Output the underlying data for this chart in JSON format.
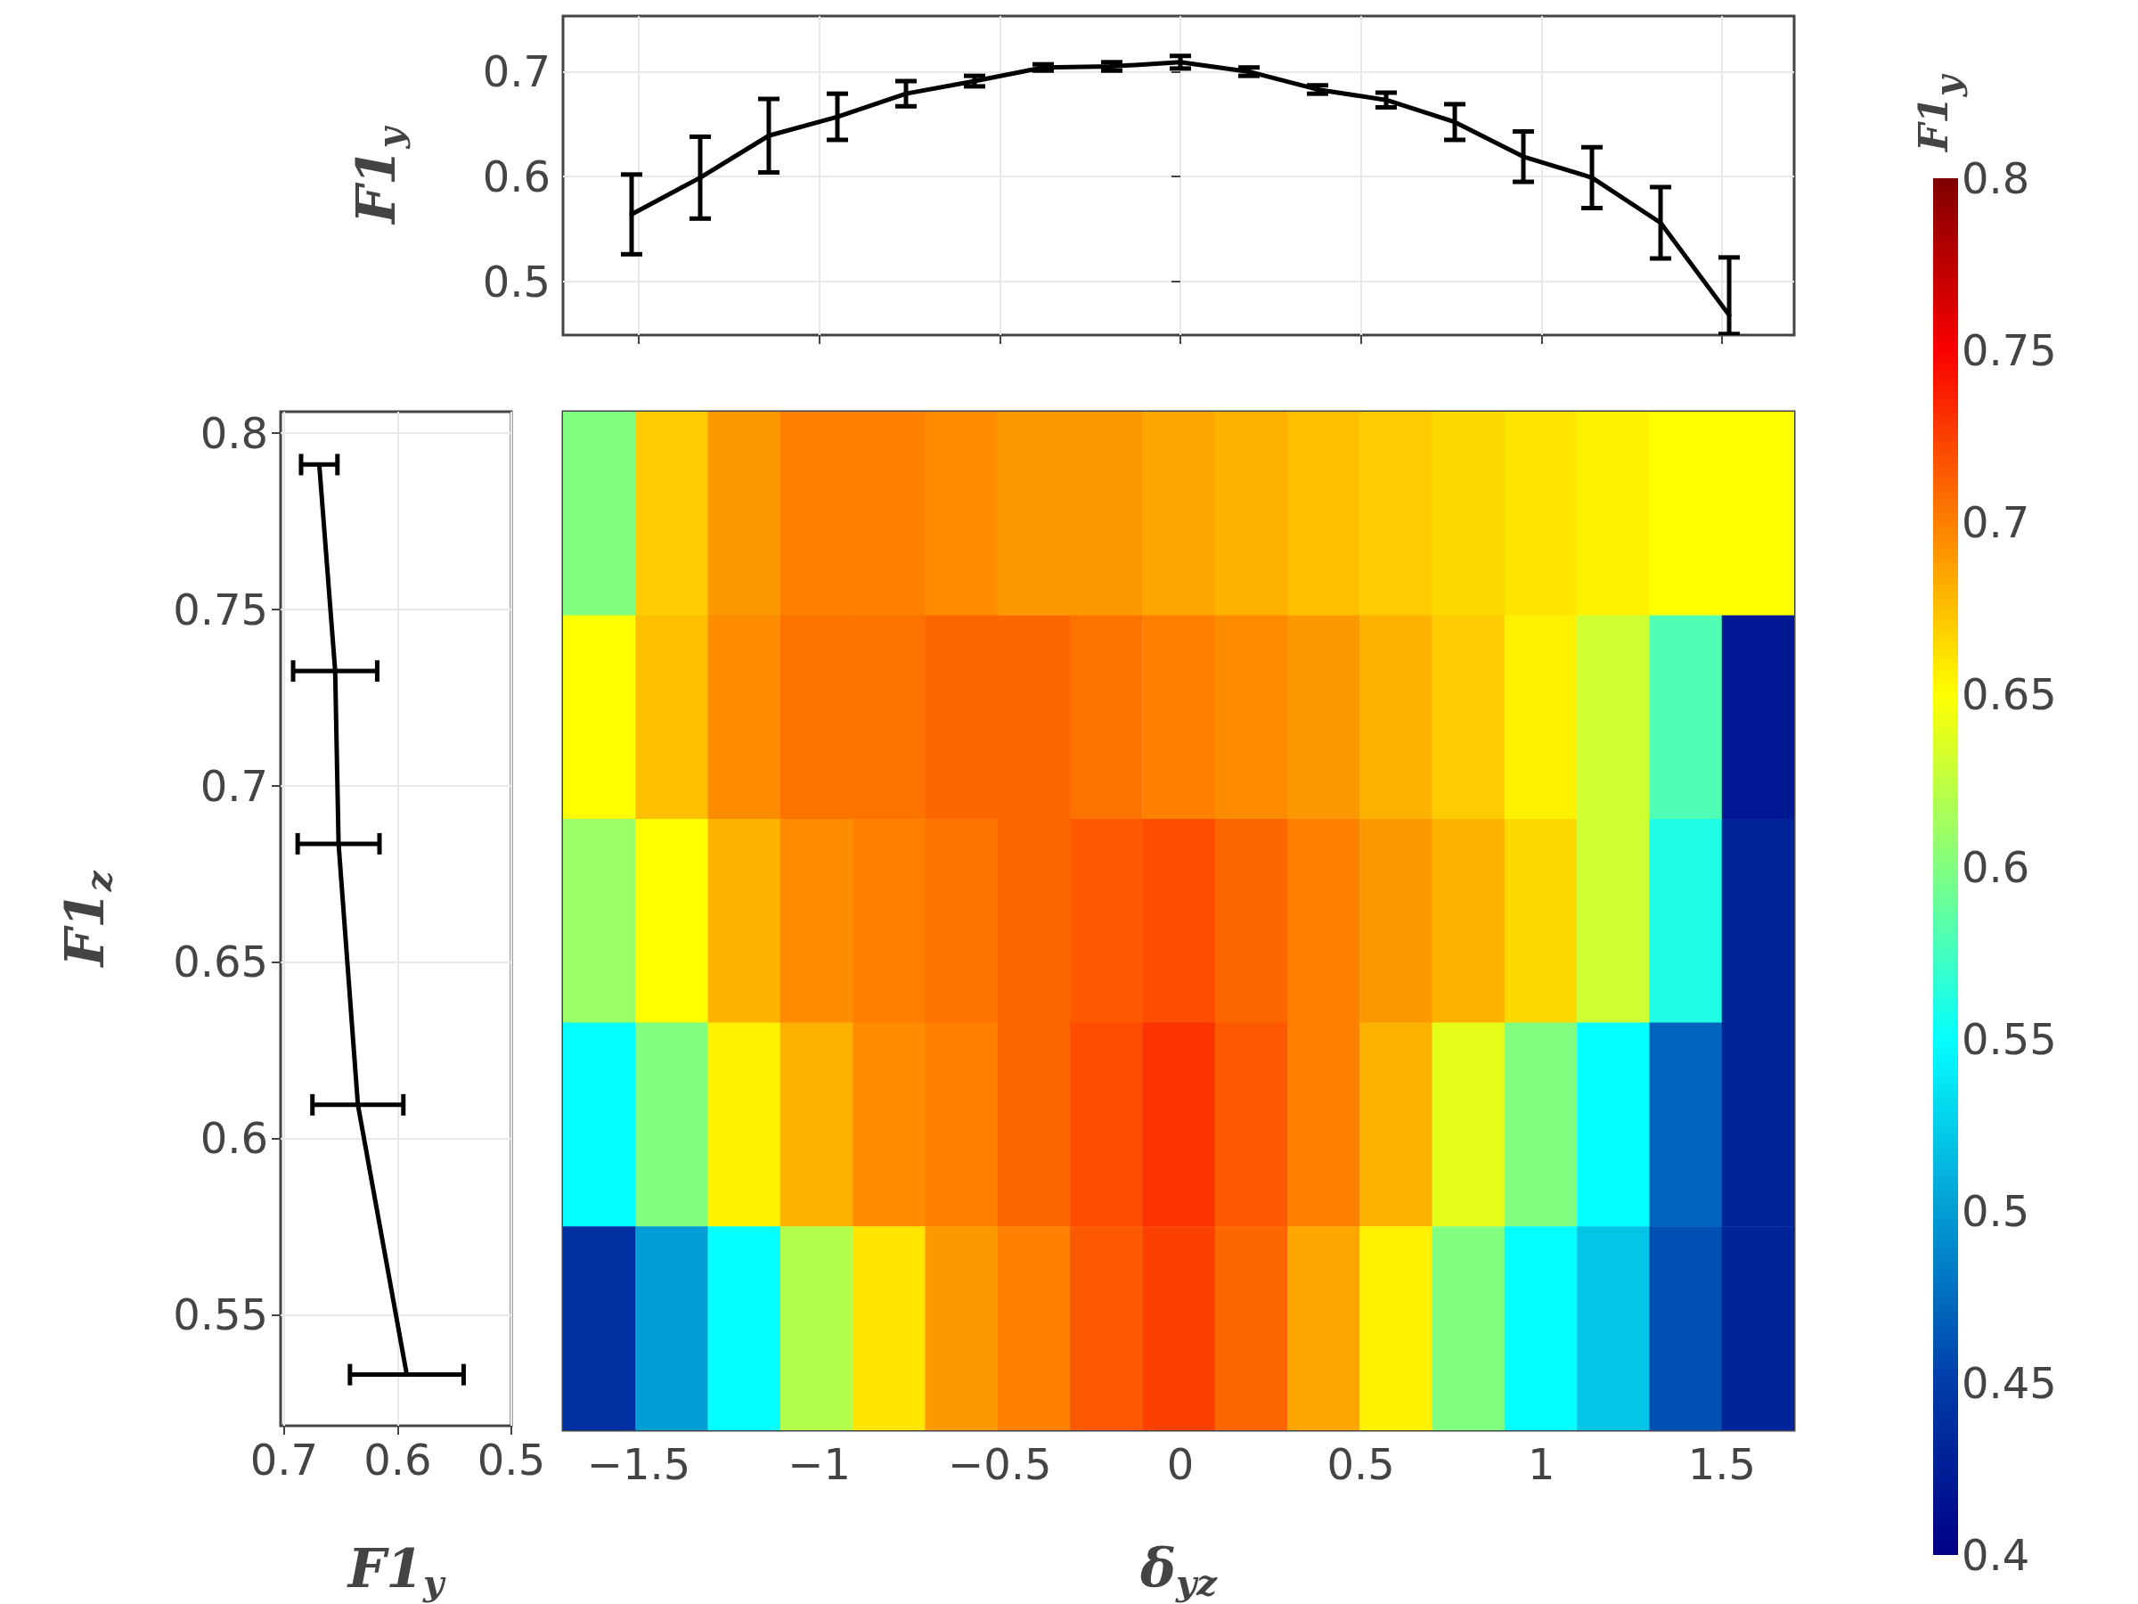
{
  "chart_data": [
    {
      "type": "line",
      "ylabel": "F1$_{y}$",
      "x": [
        -1.52,
        -1.33,
        -1.14,
        -0.95,
        -0.76,
        -0.57,
        -0.38,
        -0.19,
        0,
        0.19,
        0.38,
        0.57,
        0.76,
        0.95,
        1.14,
        1.33,
        1.52
      ],
      "series": [
        {
          "color": "#000000",
          "values": [
            0.564,
            0.599,
            0.639,
            0.657,
            0.679,
            0.691,
            0.704,
            0.705,
            0.709,
            0.7,
            0.683,
            0.673,
            0.652,
            0.619,
            0.599,
            0.556,
            0.468
          ],
          "errors": [
            0.038,
            0.039,
            0.035,
            0.022,
            0.012,
            0.005,
            0.003,
            0.004,
            0.006,
            0.004,
            0.004,
            0.007,
            0.017,
            0.024,
            0.029,
            0.034,
            [
              0.45,
              0.523
            ]
          ]
        }
      ],
      "xlim": [
        -1.71,
        1.7
      ],
      "xticks": [
        -1.5,
        -1,
        -0.5,
        0,
        0.5,
        1,
        1.5
      ],
      "ylim": [
        0.449,
        0.753
      ],
      "yticks": [
        0.5,
        0.6,
        0.7
      ],
      "grid": true,
      "tick_labels": "y",
      "marker": "none"
    },
    {
      "type": "line",
      "xlabel": "F1$_{y}$",
      "ylabel": "F1$_{z}$",
      "x": [
        0.669,
        0.655,
        0.652,
        0.635,
        0.592
      ],
      "series": [
        {
          "color": "#000000",
          "values": [
            0.791,
            0.7325,
            0.6835,
            0.6095,
            0.533
          ],
          "xerrors": [
            0.016,
            0.037,
            0.036,
            0.04,
            0.05
          ]
        }
      ],
      "xlim": [
        0.703,
        0.5
      ],
      "xticks": [
        0.7,
        0.6,
        0.5
      ],
      "ylim": [
        0.5185,
        0.806
      ],
      "yticks": [
        0.55,
        0.6,
        0.65,
        0.7,
        0.75,
        0.8
      ],
      "grid": true,
      "marker": "none"
    },
    {
      "type": "heatmap",
      "xlabel": "δ$_{yz}$",
      "clabel": "F1$_{y}$",
      "x": [
        -1.61,
        -1.409,
        -1.209,
        -1.008,
        -0.807,
        -0.607,
        -0.406,
        -0.206,
        -0.005,
        0.196,
        0.396,
        0.597,
        0.797,
        0.998,
        1.199,
        1.399,
        1.6
      ],
      "y": [
        0.7773,
        0.7198,
        0.6623,
        0.6048,
        0.5473
      ],
      "cells": [
        [
          0.6,
          0.67,
          0.69,
          0.7,
          0.7,
          0.695,
          0.69,
          0.69,
          0.685,
          0.68,
          0.675,
          0.67,
          0.665,
          0.66,
          0.655,
          0.65,
          0.65
        ],
        [
          0.65,
          0.675,
          0.695,
          0.705,
          0.705,
          0.71,
          0.71,
          0.705,
          0.7,
          0.695,
          0.69,
          0.68,
          0.67,
          0.655,
          0.63,
          0.58,
          0.42
        ],
        [
          0.61,
          0.65,
          0.68,
          0.695,
          0.7,
          0.705,
          0.71,
          0.715,
          0.72,
          0.71,
          0.7,
          0.69,
          0.68,
          0.665,
          0.63,
          0.56,
          0.43
        ],
        [
          0.55,
          0.6,
          0.655,
          0.68,
          0.695,
          0.7,
          0.71,
          0.72,
          0.73,
          0.715,
          0.7,
          0.68,
          0.64,
          0.6,
          0.55,
          0.47,
          0.43
        ],
        [
          0.44,
          0.5,
          0.55,
          0.62,
          0.66,
          0.69,
          0.7,
          0.715,
          0.725,
          0.71,
          0.685,
          0.655,
          0.6,
          0.55,
          0.52,
          0.46,
          0.43
        ]
      ],
      "xlim": [
        -1.71,
        1.7
      ],
      "xticks": [
        {
          "value": -1.5,
          "label": "−1.5"
        },
        {
          "value": -1,
          "label": "−1"
        },
        {
          "value": -0.5,
          "label": "−0.5"
        },
        0,
        0.5,
        1,
        1.5
      ],
      "ylim": [
        0.5185,
        0.806
      ],
      "tick_labels": "x",
      "clim": [
        0.4,
        0.8
      ],
      "cticks": [
        0.4,
        0.45,
        0.5,
        0.55,
        0.6,
        0.65,
        0.7,
        0.75,
        0.8
      ]
    }
  ]
}
